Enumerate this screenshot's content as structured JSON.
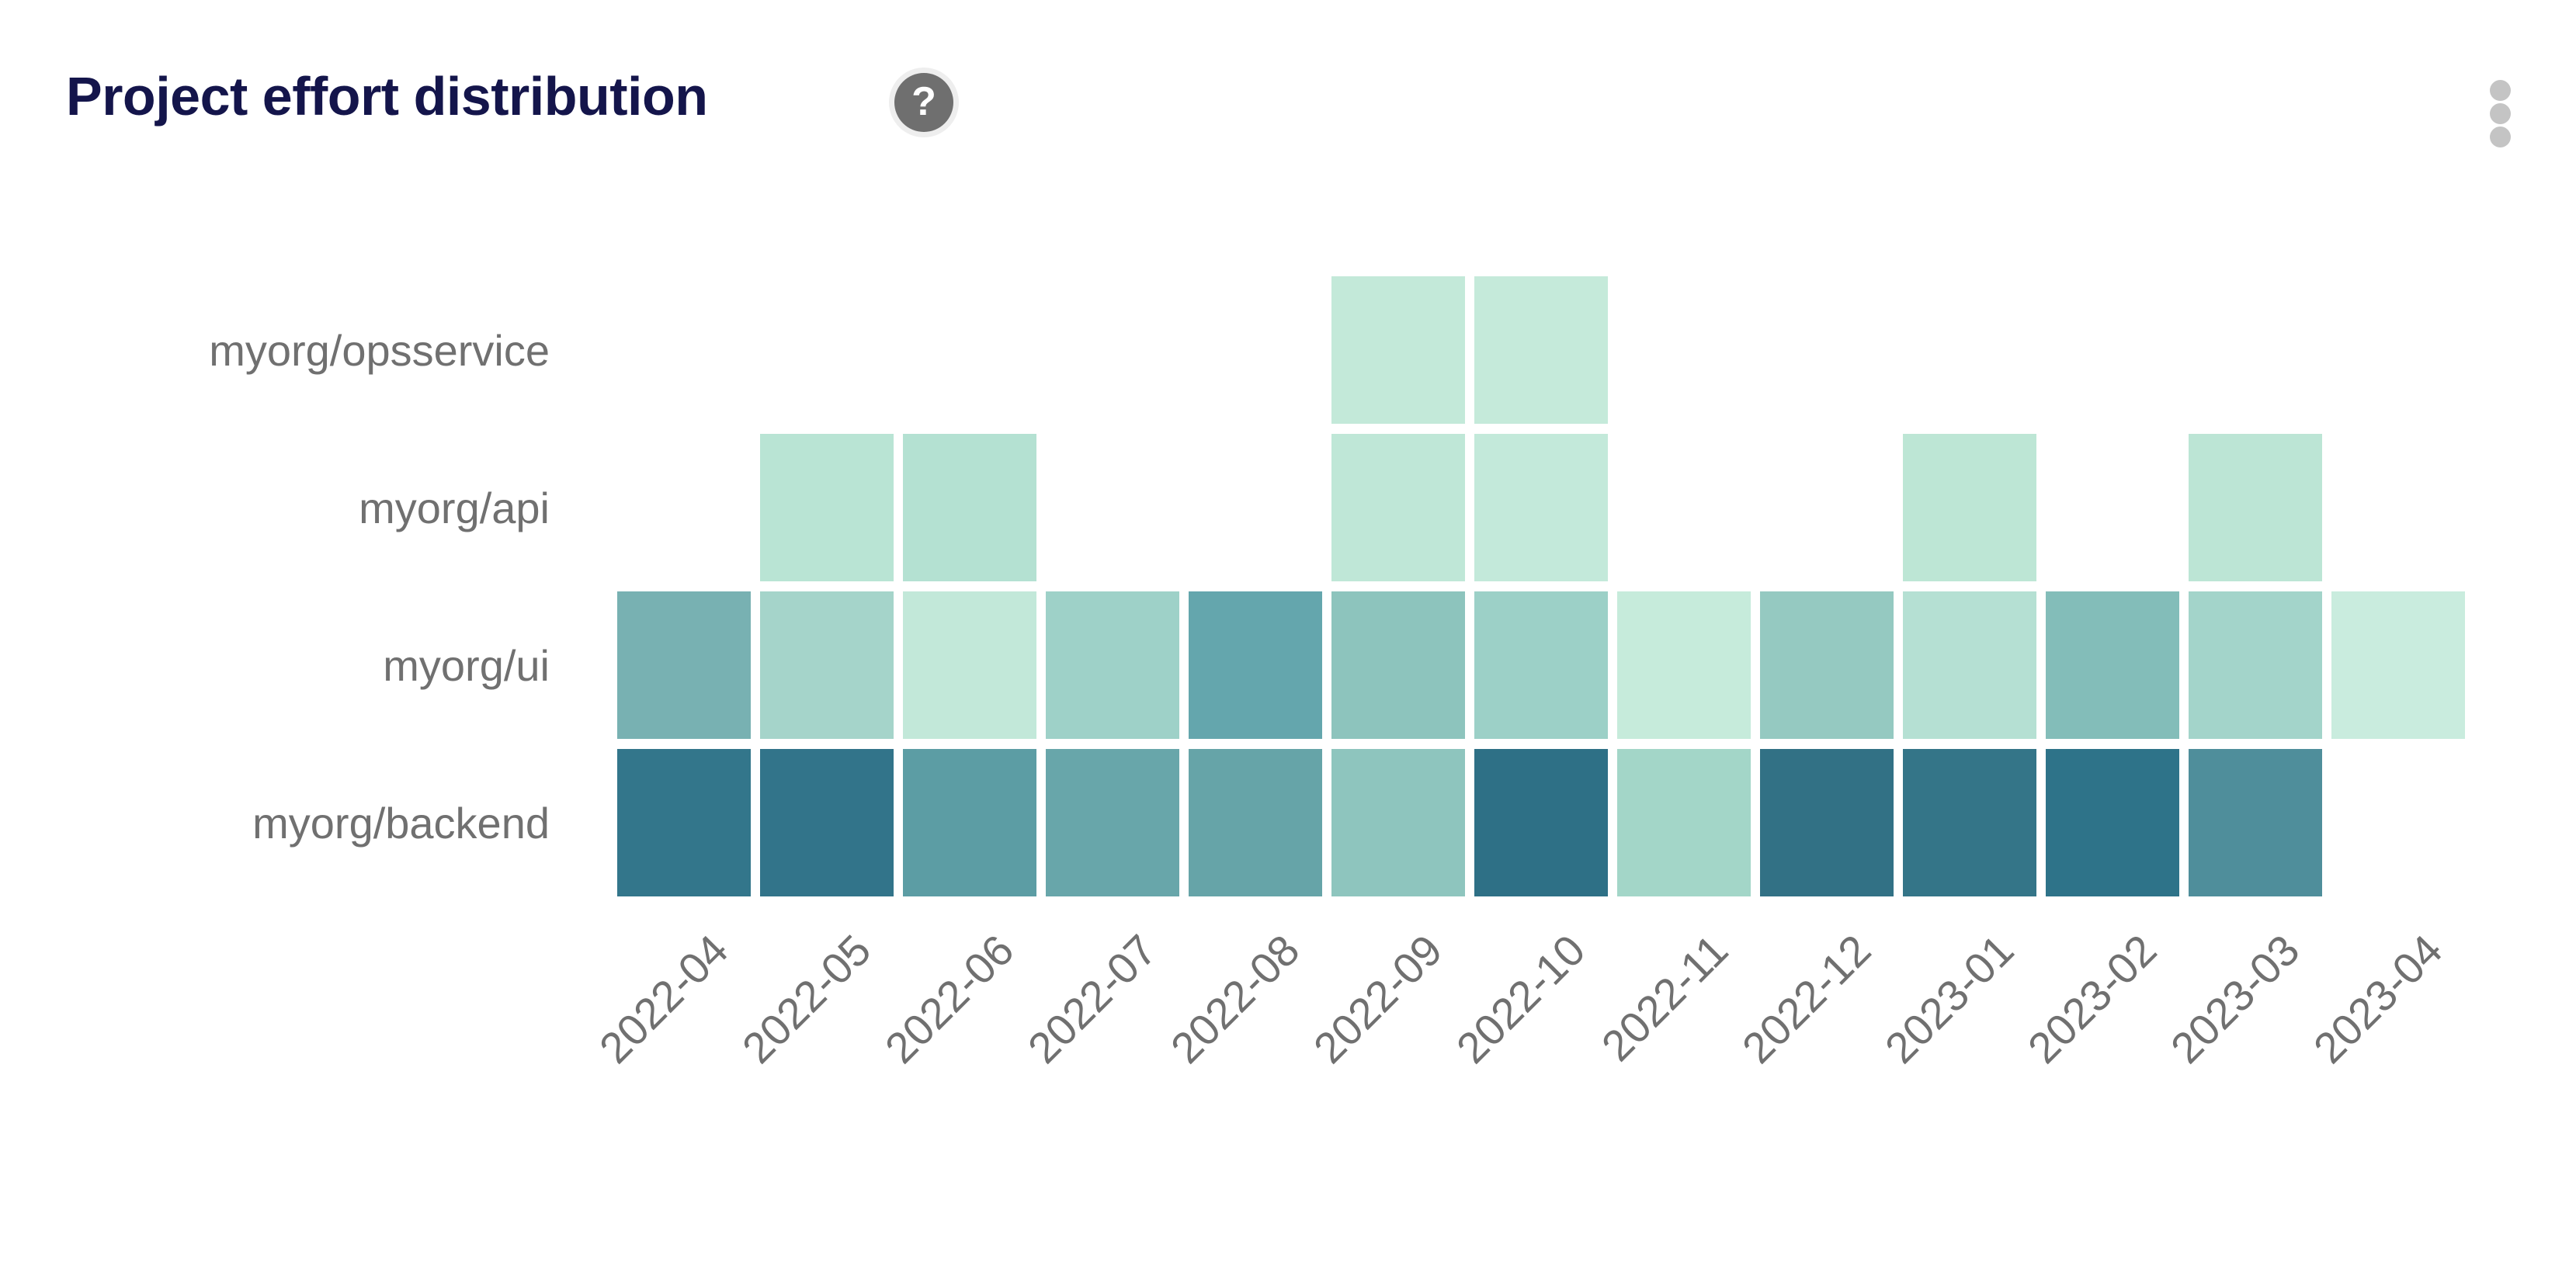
{
  "header": {
    "title": "Project effort distribution",
    "icons": {
      "help-icon": "?",
      "kebab-menu-icon": "⋮"
    }
  },
  "colors": {
    "background": "#ffffff",
    "title": "#14154b",
    "label": "#707070",
    "help_icon_bg": "#6f6f6f",
    "kebab_dot": "#c4c4c4"
  },
  "chart_data": {
    "type": "heatmap",
    "title": "Project effort distribution",
    "x_categories": [
      "2022-04",
      "2022-05",
      "2022-06",
      "2022-07",
      "2022-08",
      "2022-09",
      "2022-10",
      "2022-11",
      "2022-12",
      "2023-01",
      "2023-02",
      "2023-03",
      "2023-04"
    ],
    "y_categories": [
      "myorg/opsservice",
      "myorg/api",
      "myorg/ui",
      "myorg/backend"
    ],
    "legend_position": "none",
    "grid_lines": false,
    "cell_value_labels": false,
    "color_scale_note": "darker teal = more effort, light mint = less effort",
    "rows": [
      {
        "label": "myorg/opsservice",
        "cells": [
          null,
          null,
          null,
          null,
          null,
          "#c3e9d9",
          "#c5eada",
          null,
          null,
          null,
          null,
          null,
          null
        ]
      },
      {
        "label": "myorg/api",
        "cells": [
          null,
          "#b9e4d4",
          "#b4e1d2",
          null,
          null,
          "#bfe7d7",
          "#c3e9da",
          null,
          null,
          "#bde6d5",
          null,
          "#bce5d5",
          null
        ]
      },
      {
        "label": "myorg/ui",
        "cells": [
          "#78b1b2",
          "#a5d4ca",
          "#c2e8d9",
          "#9ed1c8",
          "#64a6ad",
          "#8dc4bd",
          "#9cd0c7",
          "#c6ebdb",
          "#95c9c1",
          "#b5e0d3",
          "#83bdb9",
          "#a3d4ca",
          "#c9ecde"
        ]
      },
      {
        "label": "myorg/backend",
        "cells": [
          "#33768b",
          "#32748a",
          "#5c9da4",
          "#68a6aa",
          "#66a4a8",
          "#8ec5be",
          "#2e7086",
          "#a3d6c8",
          "#327185",
          "#347588",
          "#2e7389",
          "#4f8e9b",
          null
        ]
      }
    ]
  }
}
